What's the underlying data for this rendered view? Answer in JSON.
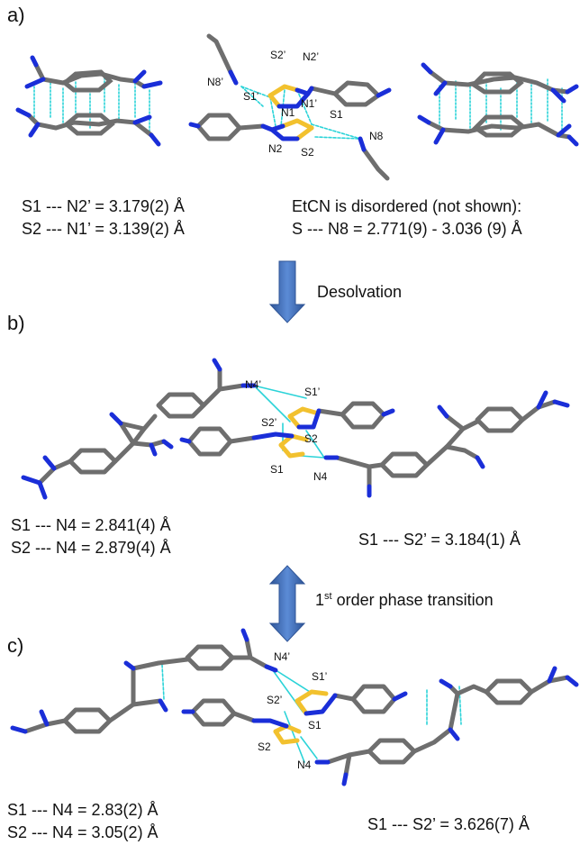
{
  "panels": {
    "a": {
      "label": "a)",
      "atoms": {
        "s2p": "S2’",
        "n2p": "N2’",
        "n8p": "N8’",
        "s1p": "S1’",
        "n1": "N1",
        "n1p": "N1’",
        "s1": "S1",
        "n2": "N2",
        "s2": "S2",
        "n8": "N8"
      },
      "dist1": "S1 --- N2’ = 3.179(2) Å",
      "dist2": "S2 --- N1’ = 3.139(2) Å",
      "note1": "EtCN is disordered (not shown):",
      "note2": "S --- N8 = 2.771(9) - 3.036 (9) Å"
    },
    "b": {
      "label": "b)",
      "atoms": {
        "n4p": "N4’",
        "s1p": "S1’",
        "s2p": "S2’",
        "s2": "S2",
        "s1": "S1",
        "n4": "N4"
      },
      "dist1": "S1 --- N4 = 2.841(4) Å",
      "dist2": "S2 --- N4 = 2.879(4) Å",
      "dist3": "S1 --- S2’ = 3.184(1) Å"
    },
    "c": {
      "label": "c)",
      "atoms": {
        "n4p": "N4’",
        "s1p": "S1’",
        "s2p": "S2’",
        "s1": "S1",
        "s2": "S2",
        "n4": "N4"
      },
      "dist1": "S1 --- N4 = 2.83(2) Å",
      "dist2": "S2 --- N4 = 3.05(2) Å",
      "dist3": "S1 --- S2’ = 3.626(7) Å"
    }
  },
  "arrows": {
    "desolvation": "Desolvation",
    "transition_prefix": "1",
    "transition_sup": "st",
    "transition_suffix": " order phase transition"
  },
  "colors": {
    "carbon": "#6e6e6e",
    "nitrogen": "#1a2ed8",
    "sulfur": "#f2c12e",
    "contact": "#2bd3d8",
    "arrow": "#4472c4"
  }
}
